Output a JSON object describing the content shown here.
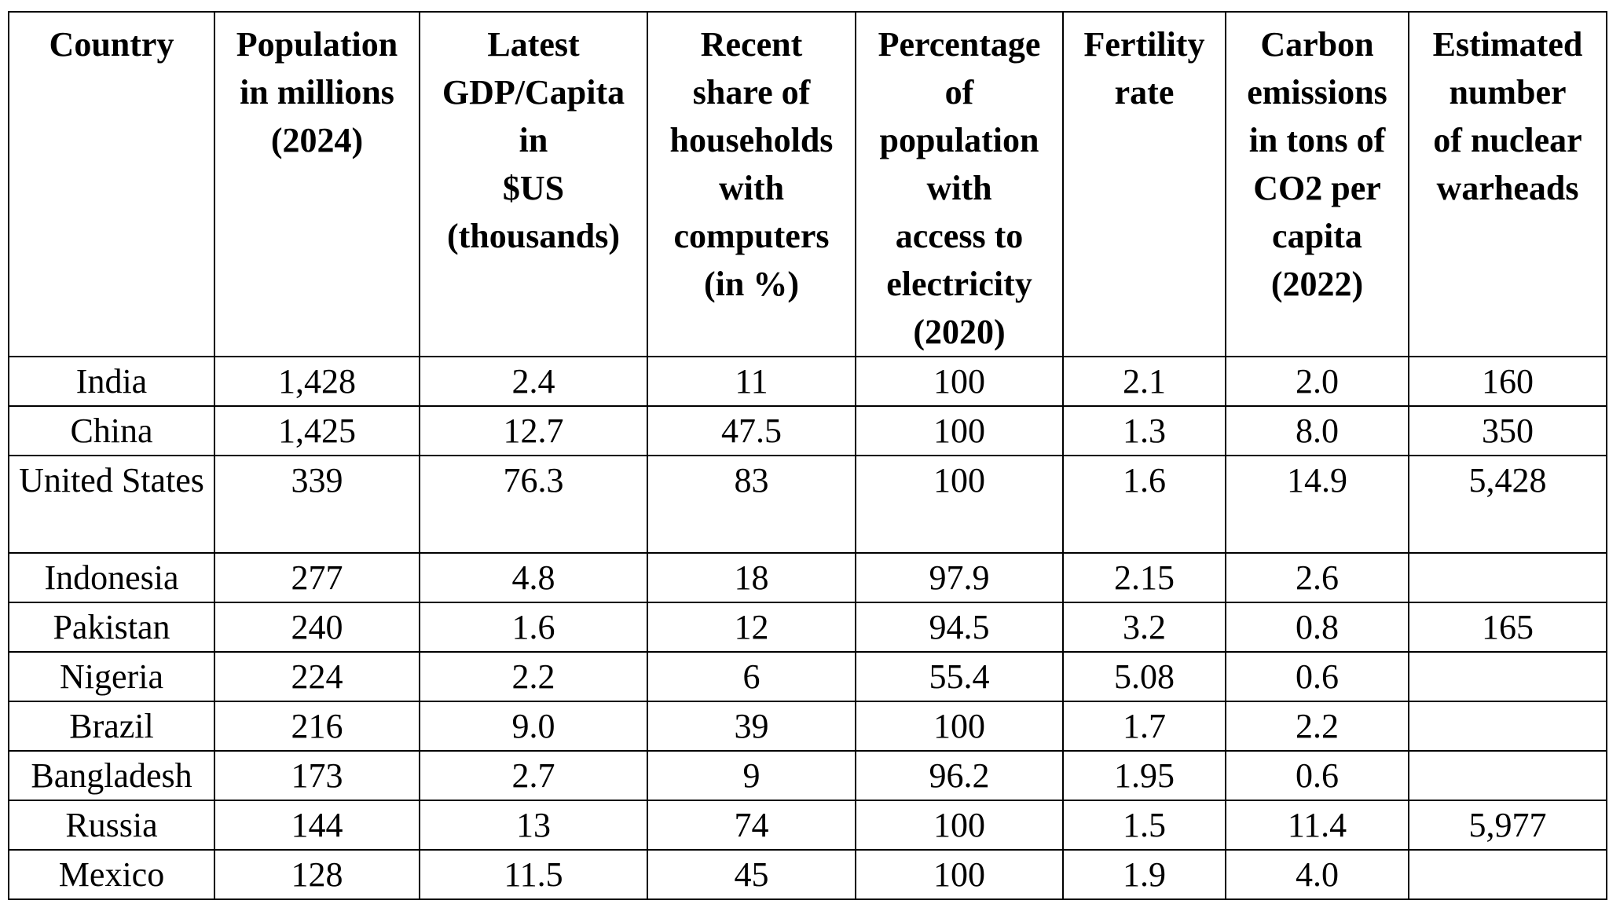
{
  "table": {
    "headers": [
      [
        "Country"
      ],
      [
        "Population",
        "in millions",
        "(2024)"
      ],
      [
        "Latest",
        "GDP/Capita",
        "in",
        "$US",
        "(thousands)"
      ],
      [
        "Recent",
        "share of",
        "households",
        "with",
        "computers",
        "(in %)"
      ],
      [
        "Percentage",
        "of",
        "population",
        "with",
        "access to",
        "electricity",
        "(2020)"
      ],
      [
        "Fertility",
        "rate"
      ],
      [
        "Carbon",
        "emissions",
        "in tons of",
        "CO2 per",
        "capita",
        "(2022)"
      ],
      [
        "Estimated",
        "number",
        "of nuclear",
        "warheads"
      ]
    ],
    "rows": [
      {
        "cells": [
          "India",
          "1,428",
          "2.4",
          "11",
          "100",
          "2.1",
          "2.0",
          "160"
        ]
      },
      {
        "cells": [
          "China",
          "1,425",
          "12.7",
          "47.5",
          "100",
          "1.3",
          "8.0",
          "350"
        ]
      },
      {
        "cells": [
          "United States",
          "339",
          "76.3",
          "83",
          "100",
          "1.6",
          "14.9",
          "5,428"
        ]
      },
      {
        "cells": [
          "Indonesia",
          "277",
          "4.8",
          "18",
          "97.9",
          "2.15",
          "2.6",
          ""
        ]
      },
      {
        "cells": [
          "Pakistan",
          "240",
          "1.6",
          "12",
          "94.5",
          "3.2",
          "0.8",
          "165"
        ]
      },
      {
        "cells": [
          "Nigeria",
          "224",
          "2.2",
          "6",
          "55.4",
          "5.08",
          "0.6",
          ""
        ]
      },
      {
        "cells": [
          "Brazil",
          "216",
          "9.0",
          "39",
          "100",
          "1.7",
          "2.2",
          ""
        ]
      },
      {
        "cells": [
          "Bangladesh",
          "173",
          "2.7",
          "9",
          "96.2",
          "1.95",
          "0.6",
          ""
        ]
      },
      {
        "cells": [
          "Russia",
          "144",
          "13",
          "74",
          "100",
          "1.5",
          "11.4",
          "5,977"
        ]
      },
      {
        "cells": [
          "Mexico",
          "128",
          "11.5",
          "45",
          "100",
          "1.9",
          "4.0",
          ""
        ]
      }
    ]
  }
}
